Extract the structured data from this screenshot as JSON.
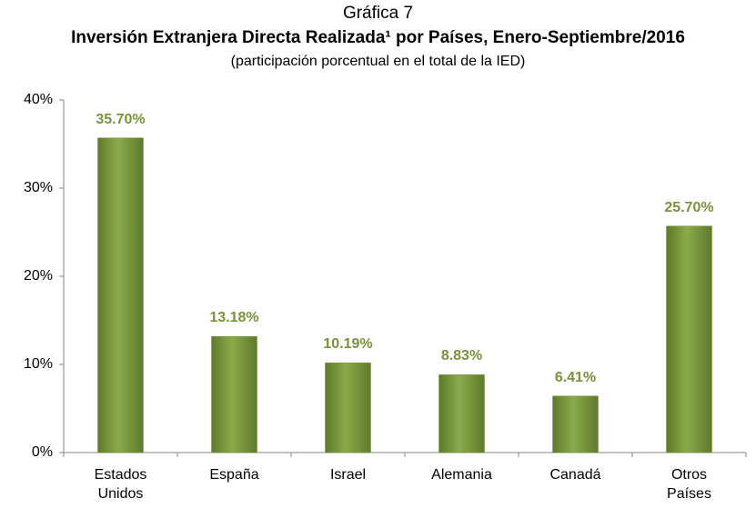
{
  "chart_data": {
    "type": "bar",
    "subtitle_top": "Gráfica 7",
    "title": "Inversión Extranjera Directa Realizada¹ por Países, Enero-Septiembre/2016",
    "subtitle": "(participación porcentual en el total de la IED)",
    "categories": [
      "Estados Unidos",
      "España",
      "Israel",
      "Alemania",
      "Canadá",
      "Otros Países"
    ],
    "values": [
      35.7,
      13.18,
      10.19,
      8.83,
      6.41,
      25.7
    ],
    "value_labels": [
      "35.70%",
      "13.18%",
      "10.19%",
      "8.83%",
      "6.41%",
      "25.70%"
    ],
    "color": "#77933c",
    "label_color": "#77933c",
    "ylim": [
      0,
      40
    ],
    "yticks": [
      {
        "value": 0,
        "label": "0%"
      },
      {
        "value": 10,
        "label": "10%"
      },
      {
        "value": 20,
        "label": "20%"
      },
      {
        "value": 30,
        "label": "30%"
      },
      {
        "value": 40,
        "label": "40%"
      }
    ],
    "grid": false
  }
}
